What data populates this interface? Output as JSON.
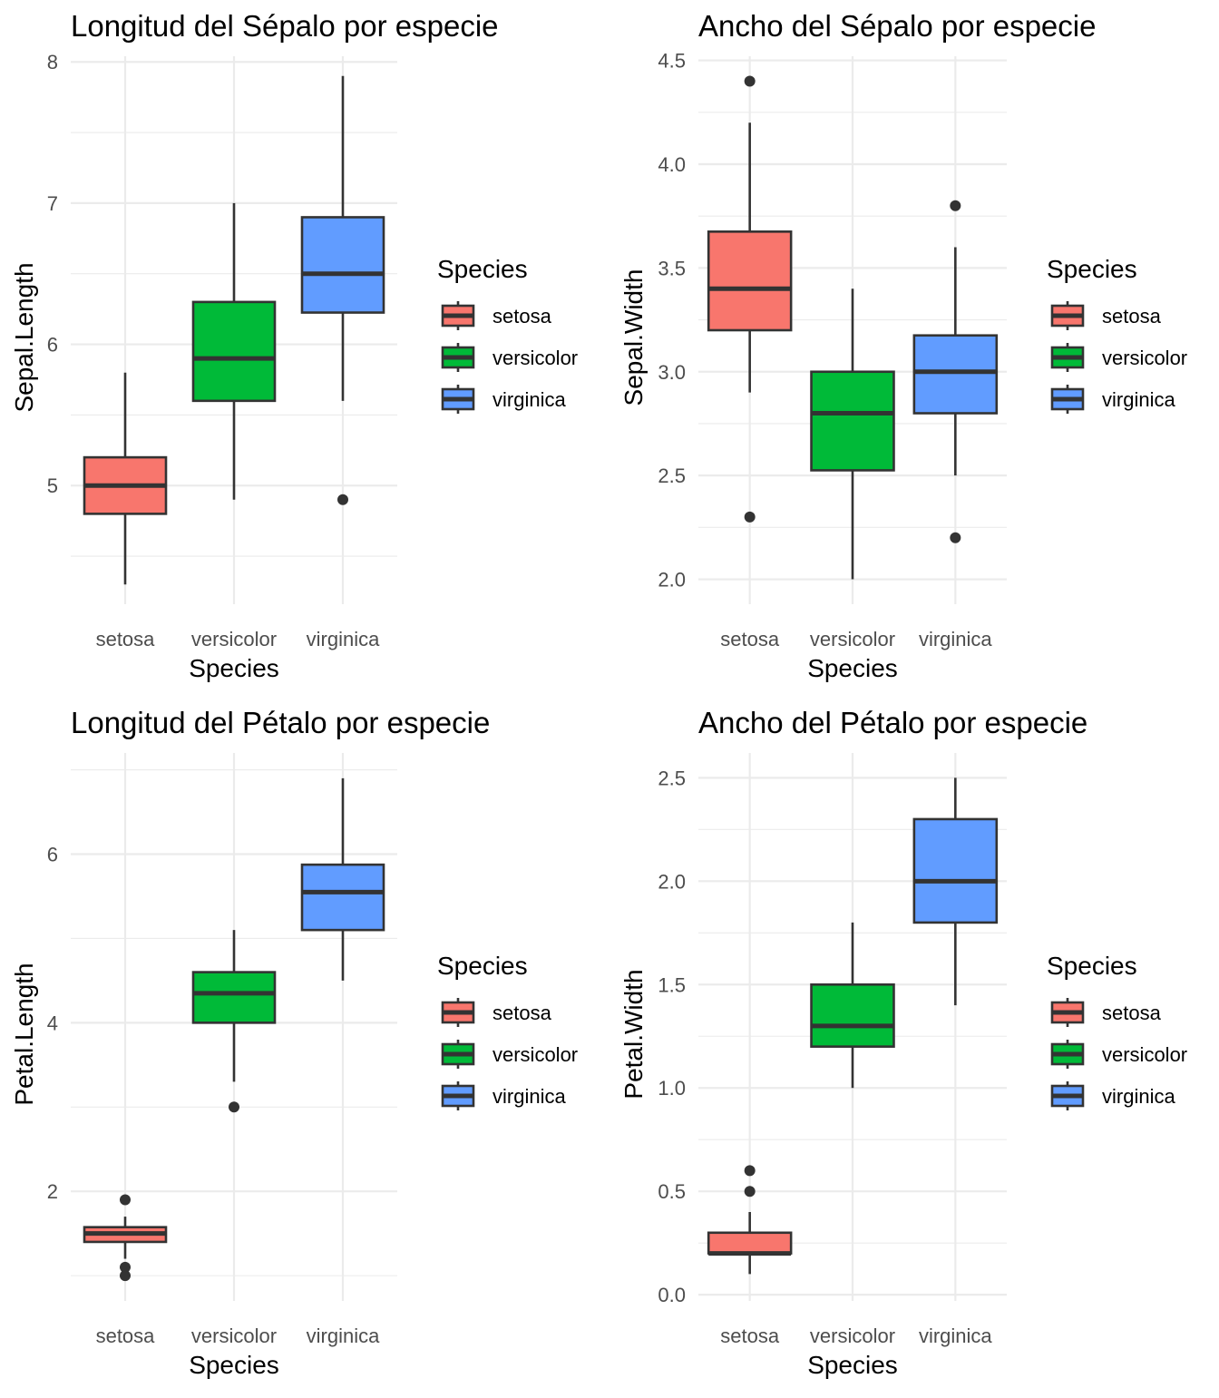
{
  "chart_data": [
    {
      "type": "boxplot",
      "title": "Longitud del Sépalo por especie",
      "xlabel": "Species",
      "ylabel": "Sepal.Length",
      "ylim": [
        4.16,
        8.04
      ],
      "yticks": [
        5,
        6,
        7,
        8
      ],
      "yminor": [
        4.5,
        5.5,
        6.5,
        7.5
      ],
      "legend": {
        "title": "Species",
        "position": "right"
      },
      "grid": true,
      "categories": [
        "setosa",
        "versicolor",
        "virginica"
      ],
      "colors": [
        "#F8766D",
        "#00BA38",
        "#619CFF"
      ],
      "series": [
        {
          "name": "setosa",
          "whisker_low": 4.3,
          "q1": 4.8,
          "median": 5.0,
          "q3": 5.2,
          "whisker_high": 5.8,
          "outliers": []
        },
        {
          "name": "versicolor",
          "whisker_low": 4.9,
          "q1": 5.6,
          "median": 5.9,
          "q3": 6.3,
          "whisker_high": 7.0,
          "outliers": []
        },
        {
          "name": "virginica",
          "whisker_low": 5.6,
          "q1": 6.225,
          "median": 6.5,
          "q3": 6.9,
          "whisker_high": 7.9,
          "outliers": [
            4.9
          ]
        }
      ]
    },
    {
      "type": "boxplot",
      "title": "Ancho del Sépalo por especie",
      "xlabel": "Species",
      "ylabel": "Sepal.Width",
      "ylim": [
        1.88,
        4.52
      ],
      "yticks": [
        2.0,
        2.5,
        3.0,
        3.5,
        4.0,
        4.5
      ],
      "yminor": [
        2.25,
        2.75,
        3.25,
        3.75,
        4.25
      ],
      "decimals": 1,
      "legend": {
        "title": "Species",
        "position": "right"
      },
      "grid": true,
      "categories": [
        "setosa",
        "versicolor",
        "virginica"
      ],
      "colors": [
        "#F8766D",
        "#00BA38",
        "#619CFF"
      ],
      "series": [
        {
          "name": "setosa",
          "whisker_low": 2.9,
          "q1": 3.2,
          "median": 3.4,
          "q3": 3.675,
          "whisker_high": 4.2,
          "outliers": [
            4.4,
            2.3
          ]
        },
        {
          "name": "versicolor",
          "whisker_low": 2.0,
          "q1": 2.525,
          "median": 2.8,
          "q3": 3.0,
          "whisker_high": 3.4,
          "outliers": []
        },
        {
          "name": "virginica",
          "whisker_low": 2.5,
          "q1": 2.8,
          "median": 3.0,
          "q3": 3.175,
          "whisker_high": 3.6,
          "outliers": [
            3.8,
            2.2
          ]
        }
      ]
    },
    {
      "type": "boxplot",
      "title": "Longitud del Pétalo por especie",
      "xlabel": "Species",
      "ylabel": "Petal.Length",
      "ylim": [
        0.7,
        7.2
      ],
      "yticks": [
        2,
        4,
        6
      ],
      "yminor": [
        1,
        3,
        5,
        7
      ],
      "legend": {
        "title": "Species",
        "position": "right"
      },
      "grid": true,
      "categories": [
        "setosa",
        "versicolor",
        "virginica"
      ],
      "colors": [
        "#F8766D",
        "#00BA38",
        "#619CFF"
      ],
      "series": [
        {
          "name": "setosa",
          "whisker_low": 1.2,
          "q1": 1.4,
          "median": 1.5,
          "q3": 1.575,
          "whisker_high": 1.7,
          "outliers": [
            1.9,
            1.1,
            1.0
          ]
        },
        {
          "name": "versicolor",
          "whisker_low": 3.3,
          "q1": 4.0,
          "median": 4.35,
          "q3": 4.6,
          "whisker_high": 5.1,
          "outliers": [
            3.0
          ]
        },
        {
          "name": "virginica",
          "whisker_low": 4.5,
          "q1": 5.1,
          "median": 5.55,
          "q3": 5.875,
          "whisker_high": 6.9,
          "outliers": []
        }
      ]
    },
    {
      "type": "boxplot",
      "title": "Ancho del Pétalo por especie",
      "xlabel": "Species",
      "ylabel": "Petal.Width",
      "ylim": [
        -0.03,
        2.62
      ],
      "yticks": [
        0.0,
        0.5,
        1.0,
        1.5,
        2.0,
        2.5
      ],
      "yminor": [
        0.25,
        0.75,
        1.25,
        1.75,
        2.25
      ],
      "decimals": 1,
      "legend": {
        "title": "Species",
        "position": "right"
      },
      "grid": true,
      "categories": [
        "setosa",
        "versicolor",
        "virginica"
      ],
      "colors": [
        "#F8766D",
        "#00BA38",
        "#619CFF"
      ],
      "series": [
        {
          "name": "setosa",
          "whisker_low": 0.1,
          "q1": 0.2,
          "median": 0.2,
          "q3": 0.3,
          "whisker_high": 0.4,
          "outliers": [
            0.6,
            0.5
          ]
        },
        {
          "name": "versicolor",
          "whisker_low": 1.0,
          "q1": 1.2,
          "median": 1.3,
          "q3": 1.5,
          "whisker_high": 1.8,
          "outliers": []
        },
        {
          "name": "virginica",
          "whisker_low": 1.4,
          "q1": 1.8,
          "median": 2.0,
          "q3": 2.3,
          "whisker_high": 2.5,
          "outliers": []
        }
      ]
    }
  ]
}
